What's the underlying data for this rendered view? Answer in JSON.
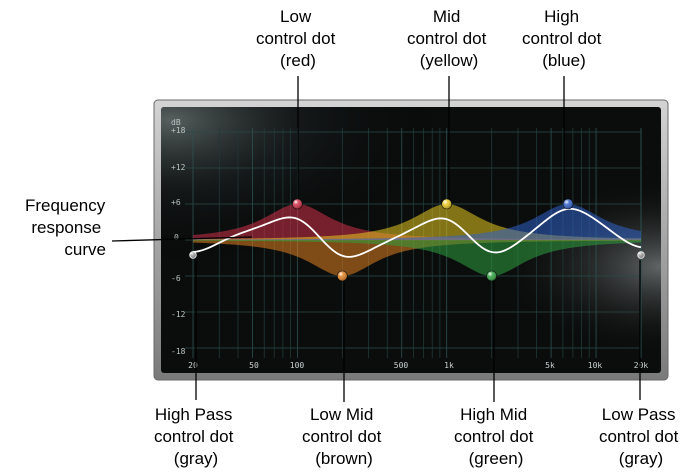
{
  "eq": {
    "unit_label": "dB",
    "db_scale": [
      "+18",
      "+12",
      "+6",
      "0",
      "-6",
      "-12",
      "-18"
    ],
    "freq_scale": [
      "20",
      "50",
      "100",
      "500",
      "1k",
      "5k",
      "10k",
      "20k"
    ]
  },
  "controls": {
    "high_pass": {
      "name": "High Pass",
      "color": "#9a9a9a",
      "frequency_hz": 20,
      "gain_db": -2.5
    },
    "low": {
      "name": "Low",
      "color": "#d03048",
      "frequency_hz": 100,
      "gain_db": 6
    },
    "low_mid": {
      "name": "Low Mid",
      "color": "#e08020",
      "frequency_hz": 200,
      "gain_db": -6
    },
    "mid": {
      "name": "Mid",
      "color": "#e8c820",
      "frequency_hz": 1000,
      "gain_db": 6
    },
    "high_mid": {
      "name": "High Mid",
      "color": "#30a040",
      "frequency_hz": 2000,
      "gain_db": -6
    },
    "high": {
      "name": "High",
      "color": "#3060c8",
      "frequency_hz": 6500,
      "gain_db": 6
    },
    "low_pass": {
      "name": "Low Pass",
      "color": "#9a9a9a",
      "frequency_hz": 20000,
      "gain_db": -2.5
    }
  },
  "callouts": {
    "low": [
      "Low",
      "control dot",
      "(red)"
    ],
    "mid": [
      "Mid",
      "control dot",
      "(yellow)"
    ],
    "high": [
      "High",
      "control dot",
      "(blue)"
    ],
    "curve": [
      "Frequency",
      "response",
      "curve"
    ],
    "high_pass": [
      "High Pass",
      "control dot",
      "(gray)"
    ],
    "low_mid": [
      "Low Mid",
      "control dot",
      "(brown)"
    ],
    "high_mid": [
      "High Mid",
      "control dot",
      "(green)"
    ],
    "low_pass": [
      "Low Pass",
      "control dot",
      "(gray)"
    ]
  }
}
